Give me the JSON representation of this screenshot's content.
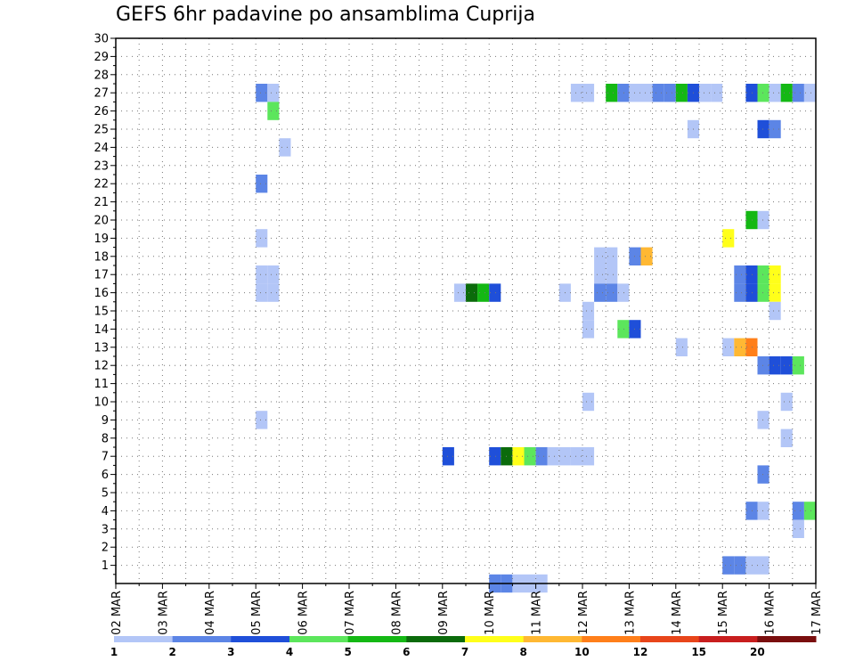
{
  "chart_data": {
    "type": "heatmap",
    "title": "GEFS 6hr padavine po ansamblima Cuprija",
    "y_ticks": [
      "1",
      "2",
      "3",
      "4",
      "5",
      "6",
      "7",
      "8",
      "9",
      "10",
      "11",
      "12",
      "13",
      "14",
      "15",
      "16",
      "17",
      "18",
      "19",
      "20",
      "21",
      "22",
      "23",
      "24",
      "25",
      "26",
      "27",
      "28",
      "29",
      "30"
    ],
    "ylim": [
      0,
      30
    ],
    "x_ticks": [
      "02 MAR",
      "03 MAR",
      "04 MAR",
      "05 MAR",
      "06 MAR",
      "07 MAR",
      "08 MAR",
      "09 MAR",
      "10 MAR",
      "11 MAR",
      "12 MAR",
      "13 MAR",
      "14 MAR",
      "15 MAR",
      "16 MAR",
      "17 MAR"
    ],
    "xlim_days": [
      2,
      17
    ],
    "grid": true,
    "colorbar": {
      "levels": [
        "1",
        "2",
        "3",
        "4",
        "5",
        "6",
        "7",
        "8",
        "10",
        "12",
        "15",
        "20"
      ],
      "colors": [
        "#b3c6f7",
        "#5c85e6",
        "#1f4fd9",
        "#5ce65c",
        "#14b814",
        "#0b6b0b",
        "#ffff1a",
        "#ffb833",
        "#ff7f1a",
        "#e8451a",
        "#c81e1e",
        "#7a0e0e"
      ]
    },
    "cells": [
      {
        "member": 27,
        "day": 5.0,
        "cat": 2
      },
      {
        "member": 27,
        "day": 5.25,
        "cat": 1
      },
      {
        "member": 26,
        "day": 5.25,
        "cat": 4
      },
      {
        "member": 25,
        "day": 14.25,
        "cat": 1
      },
      {
        "member": 25,
        "day": 15.75,
        "cat": 3
      },
      {
        "member": 25,
        "day": 16.0,
        "cat": 2
      },
      {
        "member": 24,
        "day": 5.5,
        "cat": 1
      },
      {
        "member": 22,
        "day": 5.0,
        "cat": 2
      },
      {
        "member": 20,
        "day": 15.5,
        "cat": 5
      },
      {
        "member": 20,
        "day": 15.75,
        "cat": 1
      },
      {
        "member": 19,
        "day": 5.0,
        "cat": 1
      },
      {
        "member": 19,
        "day": 15.0,
        "cat": 7
      },
      {
        "member": 18,
        "day": 12.25,
        "cat": 1
      },
      {
        "member": 18,
        "day": 12.5,
        "cat": 1
      },
      {
        "member": 18,
        "day": 13.0,
        "cat": 2
      },
      {
        "member": 18,
        "day": 13.25,
        "cat": 8
      },
      {
        "member": 17,
        "day": 5.0,
        "cat": 1
      },
      {
        "member": 17,
        "day": 5.25,
        "cat": 1
      },
      {
        "member": 17,
        "day": 12.25,
        "cat": 1
      },
      {
        "member": 17,
        "day": 12.5,
        "cat": 1
      },
      {
        "member": 17,
        "day": 15.25,
        "cat": 2
      },
      {
        "member": 17,
        "day": 15.5,
        "cat": 3
      },
      {
        "member": 17,
        "day": 15.75,
        "cat": 4
      },
      {
        "member": 17,
        "day": 16.0,
        "cat": 7
      },
      {
        "member": 16,
        "day": 5.0,
        "cat": 1
      },
      {
        "member": 16,
        "day": 5.25,
        "cat": 1
      },
      {
        "member": 16,
        "day": 9.25,
        "cat": 1
      },
      {
        "member": 16,
        "day": 9.5,
        "cat": 6
      },
      {
        "member": 16,
        "day": 9.75,
        "cat": 5
      },
      {
        "member": 16,
        "day": 10.0,
        "cat": 3
      },
      {
        "member": 16,
        "day": 11.5,
        "cat": 1
      },
      {
        "member": 16,
        "day": 12.25,
        "cat": 2
      },
      {
        "member": 16,
        "day": 12.5,
        "cat": 2
      },
      {
        "member": 16,
        "day": 12.75,
        "cat": 1
      },
      {
        "member": 16,
        "day": 15.25,
        "cat": 2
      },
      {
        "member": 16,
        "day": 15.5,
        "cat": 3
      },
      {
        "member": 16,
        "day": 15.75,
        "cat": 4
      },
      {
        "member": 16,
        "day": 16.0,
        "cat": 7
      },
      {
        "member": 15,
        "day": 12.0,
        "cat": 1
      },
      {
        "member": 15,
        "day": 16.0,
        "cat": 1
      },
      {
        "member": 14,
        "day": 12.0,
        "cat": 1
      },
      {
        "member": 14,
        "day": 12.75,
        "cat": 4
      },
      {
        "member": 14,
        "day": 13.0,
        "cat": 3
      },
      {
        "member": 13,
        "day": 14.0,
        "cat": 1
      },
      {
        "member": 13,
        "day": 15.0,
        "cat": 1
      },
      {
        "member": 13,
        "day": 15.25,
        "cat": 8
      },
      {
        "member": 13,
        "day": 15.5,
        "cat": 9
      },
      {
        "member": 12,
        "day": 15.75,
        "cat": 2
      },
      {
        "member": 12,
        "day": 16.0,
        "cat": 3
      },
      {
        "member": 12,
        "day": 16.25,
        "cat": 3
      },
      {
        "member": 12,
        "day": 16.5,
        "cat": 4
      },
      {
        "member": 10,
        "day": 12.0,
        "cat": 1
      },
      {
        "member": 10,
        "day": 16.25,
        "cat": 1
      },
      {
        "member": 9,
        "day": 5.0,
        "cat": 1
      },
      {
        "member": 9,
        "day": 15.75,
        "cat": 1
      },
      {
        "member": 8,
        "day": 16.25,
        "cat": 1
      },
      {
        "member": 7,
        "day": 9.0,
        "cat": 3
      },
      {
        "member": 7,
        "day": 10.0,
        "cat": 3
      },
      {
        "member": 7,
        "day": 10.25,
        "cat": 6
      },
      {
        "member": 7,
        "day": 10.5,
        "cat": 7
      },
      {
        "member": 7,
        "day": 10.75,
        "cat": 4
      },
      {
        "member": 7,
        "day": 11.0,
        "cat": 2
      },
      {
        "member": 7,
        "day": 11.25,
        "cat": 1
      },
      {
        "member": 7,
        "day": 11.5,
        "cat": 1
      },
      {
        "member": 7,
        "day": 11.75,
        "cat": 1
      },
      {
        "member": 7,
        "day": 12.0,
        "cat": 1
      },
      {
        "member": 6,
        "day": 15.75,
        "cat": 2
      },
      {
        "member": 4,
        "day": 15.5,
        "cat": 2
      },
      {
        "member": 4,
        "day": 15.75,
        "cat": 1
      },
      {
        "member": 4,
        "day": 16.5,
        "cat": 2
      },
      {
        "member": 4,
        "day": 16.75,
        "cat": 4
      },
      {
        "member": 3,
        "day": 16.5,
        "cat": 1
      },
      {
        "member": 1,
        "day": 15.0,
        "cat": 2
      },
      {
        "member": 1,
        "day": 15.25,
        "cat": 2
      },
      {
        "member": 1,
        "day": 15.5,
        "cat": 1
      },
      {
        "member": 1,
        "day": 15.75,
        "cat": 1
      },
      {
        "member": 0,
        "day": 10.0,
        "cat": 2
      },
      {
        "member": 0,
        "day": 10.25,
        "cat": 2
      },
      {
        "member": 0,
        "day": 10.5,
        "cat": 1
      },
      {
        "member": 0,
        "day": 10.75,
        "cat": 1
      },
      {
        "member": 0,
        "day": 11.0,
        "cat": 1
      },
      {
        "member": 27,
        "day": 11.75,
        "cat": 1
      },
      {
        "member": 27,
        "day": 12.0,
        "cat": 1
      },
      {
        "member": 27,
        "day": 12.5,
        "cat": 5
      },
      {
        "member": 27,
        "day": 12.75,
        "cat": 2
      },
      {
        "member": 27,
        "day": 13.0,
        "cat": 1
      },
      {
        "member": 27,
        "day": 13.25,
        "cat": 1
      },
      {
        "member": 27,
        "day": 13.5,
        "cat": 2
      },
      {
        "member": 27,
        "day": 13.75,
        "cat": 2
      },
      {
        "member": 27,
        "day": 14.0,
        "cat": 5
      },
      {
        "member": 27,
        "day": 14.25,
        "cat": 3
      },
      {
        "member": 27,
        "day": 14.5,
        "cat": 1
      },
      {
        "member": 27,
        "day": 14.75,
        "cat": 1
      },
      {
        "member": 27,
        "day": 15.5,
        "cat": 3
      },
      {
        "member": 27,
        "day": 15.75,
        "cat": 4
      },
      {
        "member": 27,
        "day": 16.0,
        "cat": 1
      },
      {
        "member": 27,
        "day": 16.25,
        "cat": 5
      },
      {
        "member": 27,
        "day": 16.5,
        "cat": 2
      },
      {
        "member": 27,
        "day": 16.75,
        "cat": 1
      }
    ]
  }
}
